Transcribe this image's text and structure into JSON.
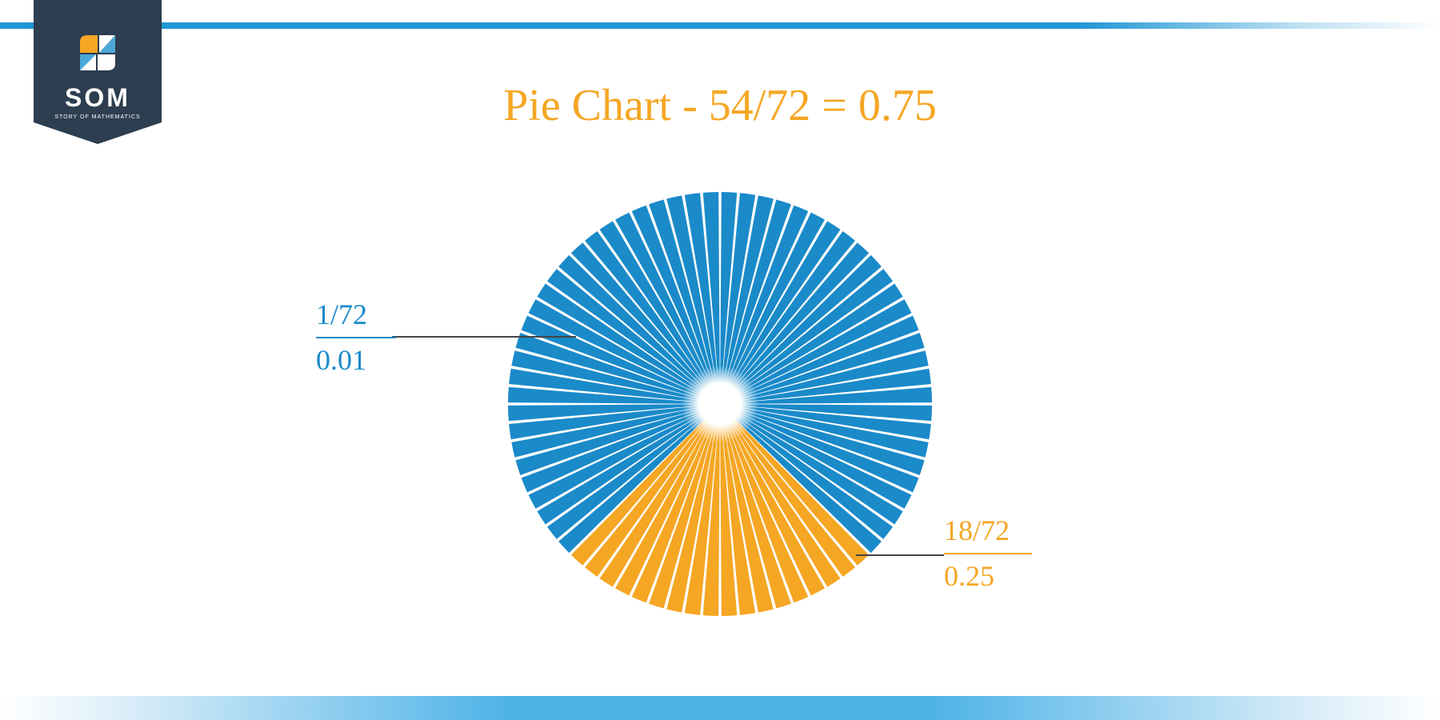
{
  "logo": {
    "text": "SOM",
    "subtext": "STORY OF MATHEMATICS",
    "badge_color": "#2c3e50",
    "icon_colors": {
      "orange": "#f5a623",
      "blue": "#4ca8d8",
      "white": "#ffffff"
    }
  },
  "title": "Pie Chart - 54/72 = 0.75",
  "title_color": "#f5a623",
  "title_fontsize": 56,
  "border_color": "#2196d4",
  "pie": {
    "type": "pie",
    "total_segments": 72,
    "radius": 265,
    "center_hole_radius": 22,
    "background_color": "#ffffff",
    "segment_gap_deg": 0.8,
    "series": [
      {
        "name": "blue_portion",
        "count": 54,
        "color": "#1a8ac9",
        "start_segment": 0
      },
      {
        "name": "yellow_portion",
        "count": 18,
        "color": "#f5a623",
        "start_segment": 54
      }
    ],
    "yellow_start_angle_deg": 135,
    "yellow_end_angle_deg": 225
  },
  "labels": {
    "left": {
      "fraction": "1/72",
      "decimal": "0.01",
      "color": "#1a8ac9",
      "fontsize": 36
    },
    "right": {
      "fraction": "18/72",
      "decimal": "0.25",
      "color": "#f5a623",
      "fontsize": 36
    }
  }
}
